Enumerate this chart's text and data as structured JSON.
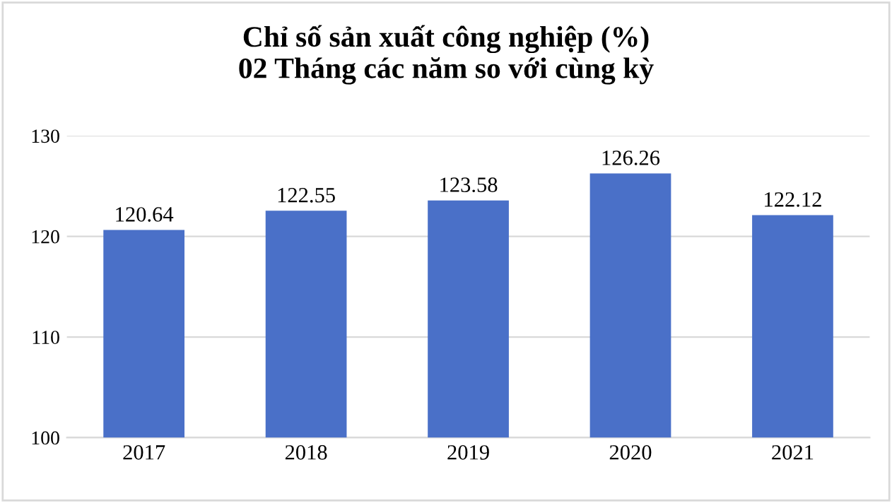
{
  "chart_data": {
    "type": "bar",
    "title": "Chỉ số sản xuất công nghiệp (%)\n02 Tháng các năm so với cùng kỳ",
    "categories": [
      "2017",
      "2018",
      "2019",
      "2020",
      "2021"
    ],
    "values": [
      120.64,
      122.55,
      123.58,
      126.26,
      122.12
    ],
    "color": "#4a70c8",
    "ylim": [
      100,
      130
    ],
    "yticks": [
      100,
      110,
      120,
      130
    ],
    "grid": "y",
    "data_labels": true
  }
}
